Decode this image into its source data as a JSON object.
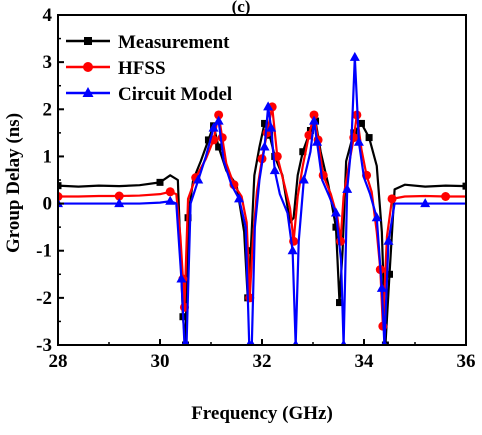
{
  "chart_data": {
    "type": "line",
    "title": "(c)",
    "xlabel": "Frequency (GHz)",
    "ylabel": "Group Delay (ns)",
    "xlim": [
      28,
      36
    ],
    "ylim": [
      -3,
      4
    ],
    "xticks": [
      28,
      30,
      32,
      34,
      36
    ],
    "xtick_labels": [
      "28",
      "30",
      "32",
      "34",
      "36"
    ],
    "yticks": [
      -3,
      -2,
      -1,
      0,
      1,
      2,
      3,
      4
    ],
    "ytick_labels": [
      "-3",
      "-2",
      "-1",
      "0",
      "1",
      "2",
      "3",
      "4"
    ],
    "grid": false,
    "legend_position": "top-left",
    "series": [
      {
        "name": "Measurement",
        "color": "#000000",
        "marker": "square",
        "x": [
          28.0,
          28.4,
          28.8,
          29.2,
          29.6,
          30.0,
          30.2,
          30.35,
          30.45,
          30.5,
          30.55,
          30.65,
          30.8,
          30.95,
          31.05,
          31.15,
          31.3,
          31.5,
          31.65,
          31.72,
          31.78,
          31.85,
          31.95,
          32.05,
          32.15,
          32.25,
          32.4,
          32.55,
          32.62,
          32.7,
          32.8,
          32.95,
          33.05,
          33.15,
          33.3,
          33.45,
          33.52,
          33.58,
          33.65,
          33.8,
          33.95,
          34.1,
          34.25,
          34.35,
          34.42,
          34.5,
          34.6,
          34.8,
          35.2,
          35.6,
          36.0
        ],
        "y": [
          0.38,
          0.36,
          0.38,
          0.37,
          0.39,
          0.45,
          0.6,
          0.5,
          -2.4,
          -3.0,
          -0.3,
          0.5,
          0.9,
          1.35,
          1.65,
          1.2,
          0.7,
          0.4,
          -0.6,
          -2.0,
          -1.0,
          0.6,
          1.2,
          1.7,
          1.45,
          1.0,
          0.6,
          -0.4,
          -0.3,
          0.6,
          1.1,
          1.55,
          1.75,
          1.1,
          0.4,
          -0.5,
          -2.1,
          -1.0,
          0.9,
          1.5,
          1.7,
          1.4,
          0.8,
          -0.6,
          -3.0,
          -1.5,
          0.3,
          0.4,
          0.36,
          0.38,
          0.37
        ]
      },
      {
        "name": "HFSS",
        "color": "#ff0000",
        "marker": "circle",
        "x": [
          28.0,
          28.4,
          28.8,
          29.2,
          29.6,
          30.0,
          30.2,
          30.32,
          30.4,
          30.45,
          30.48,
          30.55,
          30.7,
          30.9,
          31.05,
          31.15,
          31.22,
          31.3,
          31.45,
          31.6,
          31.7,
          31.76,
          31.82,
          31.9,
          32.0,
          32.1,
          32.2,
          32.3,
          32.45,
          32.55,
          32.62,
          32.7,
          32.8,
          32.92,
          33.02,
          33.1,
          33.2,
          33.35,
          33.48,
          33.54,
          33.6,
          33.7,
          33.8,
          33.86,
          33.95,
          34.05,
          34.15,
          34.25,
          34.32,
          34.37,
          34.45,
          34.55,
          34.8,
          35.2,
          35.6,
          36.0
        ],
        "y": [
          0.15,
          0.15,
          0.16,
          0.16,
          0.17,
          0.2,
          0.25,
          0.2,
          -0.7,
          -1.6,
          -2.2,
          0.1,
          0.55,
          0.95,
          1.35,
          1.88,
          1.4,
          0.85,
          0.4,
          0.15,
          -0.4,
          -2.0,
          -0.8,
          0.25,
          0.95,
          1.5,
          2.05,
          1.0,
          0.35,
          -0.1,
          -0.8,
          0.15,
          0.8,
          1.45,
          1.88,
          1.35,
          0.6,
          0.2,
          -0.3,
          -0.8,
          0.15,
          0.8,
          1.4,
          1.88,
          1.15,
          0.6,
          0.25,
          -0.6,
          -1.4,
          -2.6,
          -0.7,
          0.1,
          0.15,
          0.16,
          0.15,
          0.15
        ]
      },
      {
        "name": "Circuit Model",
        "color": "#0000ff",
        "marker": "triangle",
        "x": [
          28.0,
          28.4,
          28.8,
          29.2,
          29.6,
          30.0,
          30.2,
          30.32,
          30.42,
          30.48,
          30.52,
          30.6,
          30.75,
          30.9,
          31.05,
          31.15,
          31.25,
          31.4,
          31.55,
          31.68,
          31.75,
          31.8,
          31.86,
          31.95,
          32.05,
          32.12,
          32.18,
          32.25,
          32.35,
          32.5,
          32.6,
          32.66,
          32.72,
          32.82,
          32.95,
          33.02,
          33.08,
          33.18,
          33.32,
          33.45,
          33.55,
          33.6,
          33.67,
          33.75,
          33.82,
          33.9,
          34.0,
          34.12,
          34.25,
          34.35,
          34.4,
          34.48,
          34.6,
          34.8,
          35.2,
          35.6,
          36.0
        ],
        "y": [
          0.0,
          0.0,
          0.0,
          0.0,
          0.0,
          0.02,
          0.05,
          0.0,
          -1.6,
          -3.0,
          -3.0,
          0.0,
          0.5,
          1.0,
          1.6,
          1.75,
          0.9,
          0.4,
          0.1,
          -0.5,
          -3.0,
          -3.0,
          -0.5,
          0.5,
          1.2,
          2.05,
          1.6,
          0.7,
          0.2,
          -0.2,
          -1.0,
          -3.0,
          -0.8,
          0.5,
          1.1,
          1.75,
          1.3,
          0.5,
          0.15,
          -0.2,
          -1.2,
          -3.0,
          0.3,
          1.2,
          3.1,
          1.3,
          0.55,
          0.2,
          -0.3,
          -1.8,
          -3.0,
          -0.8,
          0.0,
          0.0,
          0.0,
          0.0,
          0.0
        ]
      }
    ]
  }
}
